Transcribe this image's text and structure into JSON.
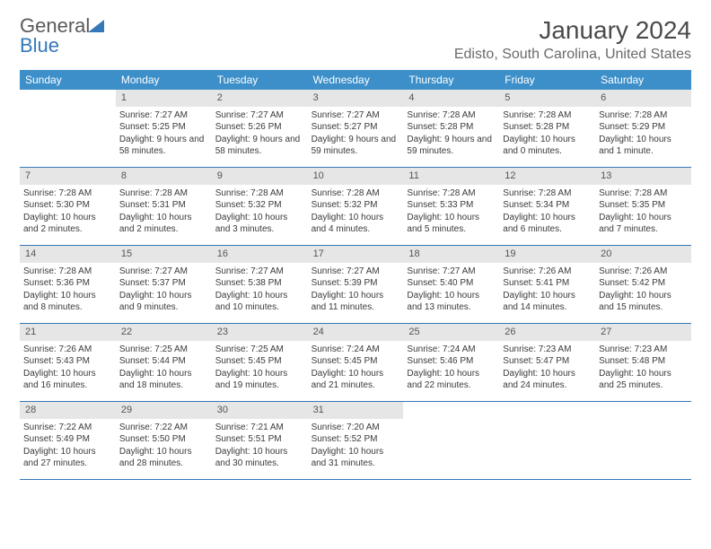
{
  "logo": {
    "word1": "General",
    "word2": "Blue"
  },
  "title": "January 2024",
  "location": "Edisto, South Carolina, United States",
  "colors": {
    "header_bg": "#3d8fc9",
    "header_text": "#ffffff",
    "daynum_bg": "#e6e6e6",
    "rule": "#3478b8",
    "body_text": "#3a3a3a",
    "title_text": "#4a4a4a",
    "subtitle_text": "#6a6a6a"
  },
  "day_names": [
    "Sunday",
    "Monday",
    "Tuesday",
    "Wednesday",
    "Thursday",
    "Friday",
    "Saturday"
  ],
  "first_weekday_index": 1,
  "days": [
    {
      "n": 1,
      "sunrise": "7:27 AM",
      "sunset": "5:25 PM",
      "daylight": "9 hours and 58 minutes."
    },
    {
      "n": 2,
      "sunrise": "7:27 AM",
      "sunset": "5:26 PM",
      "daylight": "9 hours and 58 minutes."
    },
    {
      "n": 3,
      "sunrise": "7:27 AM",
      "sunset": "5:27 PM",
      "daylight": "9 hours and 59 minutes."
    },
    {
      "n": 4,
      "sunrise": "7:28 AM",
      "sunset": "5:28 PM",
      "daylight": "9 hours and 59 minutes."
    },
    {
      "n": 5,
      "sunrise": "7:28 AM",
      "sunset": "5:28 PM",
      "daylight": "10 hours and 0 minutes."
    },
    {
      "n": 6,
      "sunrise": "7:28 AM",
      "sunset": "5:29 PM",
      "daylight": "10 hours and 1 minute."
    },
    {
      "n": 7,
      "sunrise": "7:28 AM",
      "sunset": "5:30 PM",
      "daylight": "10 hours and 2 minutes."
    },
    {
      "n": 8,
      "sunrise": "7:28 AM",
      "sunset": "5:31 PM",
      "daylight": "10 hours and 2 minutes."
    },
    {
      "n": 9,
      "sunrise": "7:28 AM",
      "sunset": "5:32 PM",
      "daylight": "10 hours and 3 minutes."
    },
    {
      "n": 10,
      "sunrise": "7:28 AM",
      "sunset": "5:32 PM",
      "daylight": "10 hours and 4 minutes."
    },
    {
      "n": 11,
      "sunrise": "7:28 AM",
      "sunset": "5:33 PM",
      "daylight": "10 hours and 5 minutes."
    },
    {
      "n": 12,
      "sunrise": "7:28 AM",
      "sunset": "5:34 PM",
      "daylight": "10 hours and 6 minutes."
    },
    {
      "n": 13,
      "sunrise": "7:28 AM",
      "sunset": "5:35 PM",
      "daylight": "10 hours and 7 minutes."
    },
    {
      "n": 14,
      "sunrise": "7:28 AM",
      "sunset": "5:36 PM",
      "daylight": "10 hours and 8 minutes."
    },
    {
      "n": 15,
      "sunrise": "7:27 AM",
      "sunset": "5:37 PM",
      "daylight": "10 hours and 9 minutes."
    },
    {
      "n": 16,
      "sunrise": "7:27 AM",
      "sunset": "5:38 PM",
      "daylight": "10 hours and 10 minutes."
    },
    {
      "n": 17,
      "sunrise": "7:27 AM",
      "sunset": "5:39 PM",
      "daylight": "10 hours and 11 minutes."
    },
    {
      "n": 18,
      "sunrise": "7:27 AM",
      "sunset": "5:40 PM",
      "daylight": "10 hours and 13 minutes."
    },
    {
      "n": 19,
      "sunrise": "7:26 AM",
      "sunset": "5:41 PM",
      "daylight": "10 hours and 14 minutes."
    },
    {
      "n": 20,
      "sunrise": "7:26 AM",
      "sunset": "5:42 PM",
      "daylight": "10 hours and 15 minutes."
    },
    {
      "n": 21,
      "sunrise": "7:26 AM",
      "sunset": "5:43 PM",
      "daylight": "10 hours and 16 minutes."
    },
    {
      "n": 22,
      "sunrise": "7:25 AM",
      "sunset": "5:44 PM",
      "daylight": "10 hours and 18 minutes."
    },
    {
      "n": 23,
      "sunrise": "7:25 AM",
      "sunset": "5:45 PM",
      "daylight": "10 hours and 19 minutes."
    },
    {
      "n": 24,
      "sunrise": "7:24 AM",
      "sunset": "5:45 PM",
      "daylight": "10 hours and 21 minutes."
    },
    {
      "n": 25,
      "sunrise": "7:24 AM",
      "sunset": "5:46 PM",
      "daylight": "10 hours and 22 minutes."
    },
    {
      "n": 26,
      "sunrise": "7:23 AM",
      "sunset": "5:47 PM",
      "daylight": "10 hours and 24 minutes."
    },
    {
      "n": 27,
      "sunrise": "7:23 AM",
      "sunset": "5:48 PM",
      "daylight": "10 hours and 25 minutes."
    },
    {
      "n": 28,
      "sunrise": "7:22 AM",
      "sunset": "5:49 PM",
      "daylight": "10 hours and 27 minutes."
    },
    {
      "n": 29,
      "sunrise": "7:22 AM",
      "sunset": "5:50 PM",
      "daylight": "10 hours and 28 minutes."
    },
    {
      "n": 30,
      "sunrise": "7:21 AM",
      "sunset": "5:51 PM",
      "daylight": "10 hours and 30 minutes."
    },
    {
      "n": 31,
      "sunrise": "7:20 AM",
      "sunset": "5:52 PM",
      "daylight": "10 hours and 31 minutes."
    }
  ],
  "labels": {
    "sunrise_prefix": "Sunrise: ",
    "sunset_prefix": "Sunset: ",
    "daylight_prefix": "Daylight: "
  }
}
